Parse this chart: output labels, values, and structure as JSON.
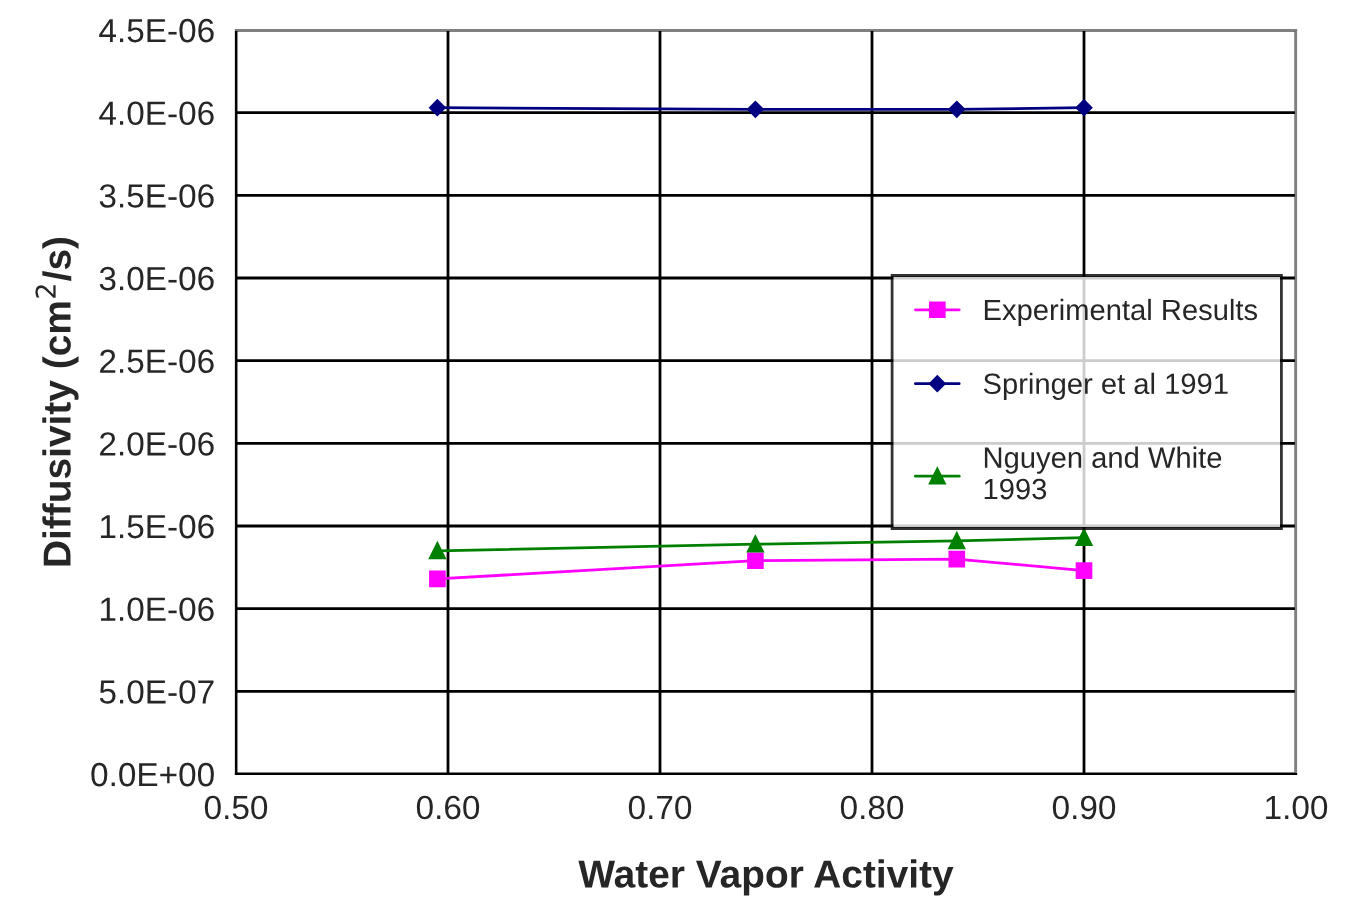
{
  "chart_data": {
    "type": "line",
    "xlabel": "Water Vapor Activity",
    "ylabel": "Diffusivity (cm$^{2}$/s)",
    "x": [
      0.595,
      0.745,
      0.84,
      0.9
    ],
    "series": [
      {
        "name": "Experimental Results",
        "color": "#ff00ff",
        "marker": "square",
        "values": [
          1.18e-06,
          1.29e-06,
          1.3e-06,
          1.23e-06
        ]
      },
      {
        "name": "Springer et al 1991",
        "color": "#000080",
        "marker": "diamond",
        "values": [
          4.03e-06,
          4.02e-06,
          4.02e-06,
          4.03e-06
        ]
      },
      {
        "name": "Nguyen and White\n1993",
        "color": "#008000",
        "marker": "triangle",
        "values": [
          1.35e-06,
          1.39e-06,
          1.41e-06,
          1.43e-06
        ]
      }
    ],
    "xlim": [
      0.5,
      1.0
    ],
    "xticks": [
      {
        "value": 0.5,
        "label": "0.50"
      },
      {
        "value": 0.6,
        "label": "0.60"
      },
      {
        "value": 0.7,
        "label": "0.70"
      },
      {
        "value": 0.8,
        "label": "0.80"
      },
      {
        "value": 0.9,
        "label": "0.90"
      },
      {
        "value": 1.0,
        "label": "1.00"
      }
    ],
    "ylim": [
      0,
      4.5e-06
    ],
    "yticks": [
      {
        "value": 0,
        "label": "0.0E+00"
      },
      {
        "value": 5e-07,
        "label": "5.0E-07"
      },
      {
        "value": 1e-06,
        "label": "1.0E-06"
      },
      {
        "value": 1.5e-06,
        "label": "1.5E-06"
      },
      {
        "value": 2e-06,
        "label": "2.0E-06"
      },
      {
        "value": 2.5e-06,
        "label": "2.5E-06"
      },
      {
        "value": 3e-06,
        "label": "3.0E-06"
      },
      {
        "value": 3.5e-06,
        "label": "3.5E-06"
      },
      {
        "value": 4e-06,
        "label": "4.0E-06"
      },
      {
        "value": 4.5e-06,
        "label": "4.5E-06"
      }
    ],
    "grid": true,
    "legend": "center right",
    "line_style": "solid"
  }
}
